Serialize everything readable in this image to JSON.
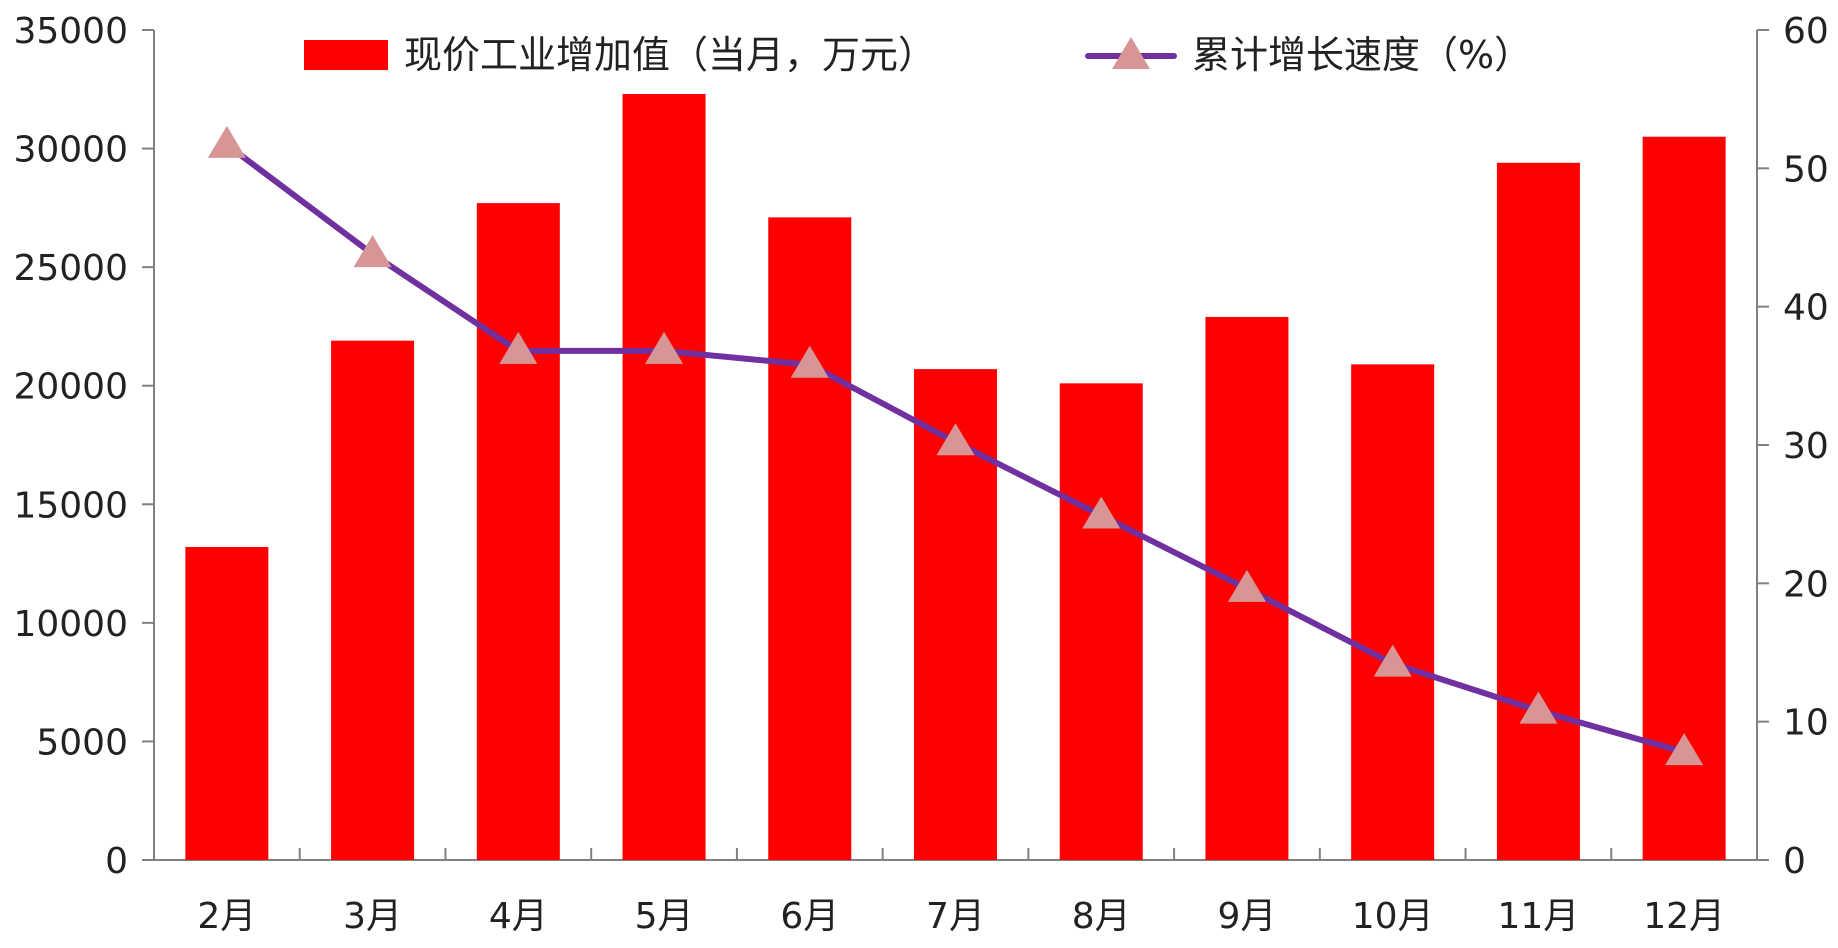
{
  "chart_data": {
    "type": "bar",
    "categories": [
      "2月",
      "3月",
      "4月",
      "5月",
      "6月",
      "7月",
      "8月",
      "9月",
      "10月",
      "11月",
      "12月"
    ],
    "series": [
      {
        "name": "现价工业增加值（当月，万元）",
        "type": "bar",
        "axis": "left",
        "color": "#ff0000",
        "values": [
          13200,
          21900,
          27700,
          32300,
          27100,
          20700,
          20100,
          22900,
          20900,
          29400,
          30500
        ]
      },
      {
        "name": "累计增长速度（%）",
        "type": "line",
        "axis": "right",
        "color": "#7030a0",
        "marker": "triangle",
        "marker_color": "#d89595",
        "values": [
          51.7,
          43.8,
          36.8,
          36.8,
          35.8,
          30.2,
          24.9,
          19.6,
          14.2,
          10.8,
          7.8
        ]
      }
    ],
    "left_axis": {
      "min": 0,
      "max": 35000,
      "ticks": [
        "0",
        "5000",
        "10000",
        "15000",
        "20000",
        "25000",
        "30000",
        "35000"
      ]
    },
    "right_axis": {
      "min": 0,
      "max": 60,
      "ticks": [
        "0",
        "10",
        "20",
        "30",
        "40",
        "50",
        "60"
      ]
    },
    "grid": false,
    "legend_position": "top"
  }
}
